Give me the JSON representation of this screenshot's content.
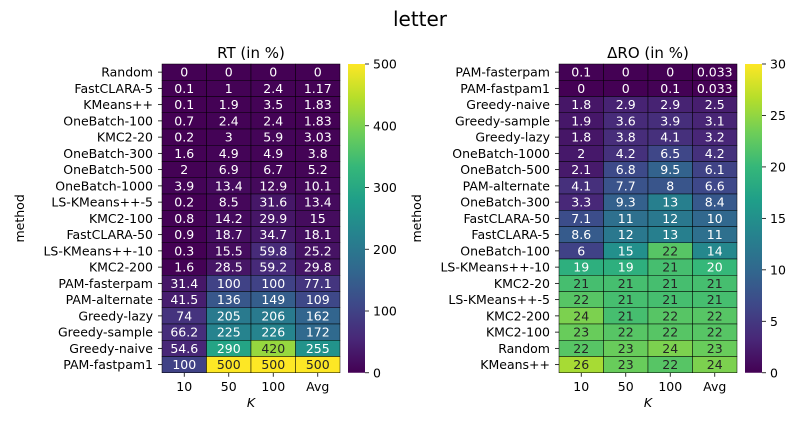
{
  "figure_title": "letter",
  "colormap": [
    "#440154",
    "#482878",
    "#3e4989",
    "#31688e",
    "#26828e",
    "#1f9e89",
    "#35b779",
    "#6ece58",
    "#b5de2b",
    "#fde725"
  ],
  "chart_data": [
    {
      "type": "heatmap",
      "title": "RT (in %)",
      "xlabel": "K",
      "ylabel": "method",
      "columns": [
        "10",
        "50",
        "100",
        "Avg"
      ],
      "vmin": 0,
      "vmax": 500,
      "colorbar_ticks": [
        0,
        100,
        200,
        300,
        400,
        500
      ],
      "rows": [
        {
          "label": "Random",
          "values": [
            "0",
            "0",
            "0",
            "0"
          ]
        },
        {
          "label": "FastCLARA-5",
          "values": [
            "0.1",
            "1",
            "2.4",
            "1.17"
          ]
        },
        {
          "label": "KMeans++",
          "values": [
            "0.1",
            "1.9",
            "3.5",
            "1.83"
          ]
        },
        {
          "label": "OneBatch-100",
          "values": [
            "0.7",
            "2.4",
            "2.4",
            "1.83"
          ]
        },
        {
          "label": "KMC2-20",
          "values": [
            "0.2",
            "3",
            "5.9",
            "3.03"
          ]
        },
        {
          "label": "OneBatch-300",
          "values": [
            "1.6",
            "4.9",
            "4.9",
            "3.8"
          ]
        },
        {
          "label": "OneBatch-500",
          "values": [
            "2",
            "6.9",
            "6.7",
            "5.2"
          ]
        },
        {
          "label": "OneBatch-1000",
          "values": [
            "3.9",
            "13.4",
            "12.9",
            "10.1"
          ]
        },
        {
          "label": "LS-KMeans++-5",
          "values": [
            "0.2",
            "8.5",
            "31.6",
            "13.4"
          ]
        },
        {
          "label": "KMC2-100",
          "values": [
            "0.8",
            "14.2",
            "29.9",
            "15"
          ]
        },
        {
          "label": "FastCLARA-50",
          "values": [
            "0.9",
            "18.7",
            "34.7",
            "18.1"
          ]
        },
        {
          "label": "LS-KMeans++-10",
          "values": [
            "0.3",
            "15.5",
            "59.8",
            "25.2"
          ]
        },
        {
          "label": "KMC2-200",
          "values": [
            "1.6",
            "28.5",
            "59.2",
            "29.8"
          ]
        },
        {
          "label": "PAM-fasterpam",
          "values": [
            "31.4",
            "100",
            "100",
            "77.1"
          ]
        },
        {
          "label": "PAM-alternate",
          "values": [
            "41.5",
            "136",
            "149",
            "109"
          ]
        },
        {
          "label": "Greedy-lazy",
          "values": [
            "74",
            "205",
            "206",
            "162"
          ]
        },
        {
          "label": "Greedy-sample",
          "values": [
            "66.2",
            "225",
            "226",
            "172"
          ]
        },
        {
          "label": "Greedy-naive",
          "values": [
            "54.6",
            "290",
            "420",
            "255"
          ]
        },
        {
          "label": "PAM-fastpam1",
          "values": [
            "100",
            "500",
            "500",
            "500"
          ]
        }
      ]
    },
    {
      "type": "heatmap",
      "title": "ΔRO (in %)",
      "xlabel": "K",
      "ylabel": "method",
      "columns": [
        "10",
        "50",
        "100",
        "Avg"
      ],
      "vmin": 0,
      "vmax": 30,
      "colorbar_ticks": [
        0,
        5,
        10,
        15,
        20,
        25,
        30
      ],
      "rows": [
        {
          "label": "PAM-fasterpam",
          "values": [
            "0.1",
            "0",
            "0",
            "0.033"
          ]
        },
        {
          "label": "PAM-fastpam1",
          "values": [
            "0",
            "0",
            "0.1",
            "0.033"
          ]
        },
        {
          "label": "Greedy-naive",
          "values": [
            "1.8",
            "2.9",
            "2.9",
            "2.5"
          ]
        },
        {
          "label": "Greedy-sample",
          "values": [
            "1.9",
            "3.6",
            "3.9",
            "3.1"
          ]
        },
        {
          "label": "Greedy-lazy",
          "values": [
            "1.8",
            "3.8",
            "4.1",
            "3.2"
          ]
        },
        {
          "label": "OneBatch-1000",
          "values": [
            "2",
            "4.2",
            "6.5",
            "4.2"
          ]
        },
        {
          "label": "OneBatch-500",
          "values": [
            "2.1",
            "6.8",
            "9.5",
            "6.1"
          ]
        },
        {
          "label": "PAM-alternate",
          "values": [
            "4.1",
            "7.7",
            "8",
            "6.6"
          ]
        },
        {
          "label": "OneBatch-300",
          "values": [
            "3.3",
            "9.3",
            "13",
            "8.4"
          ]
        },
        {
          "label": "FastCLARA-50",
          "values": [
            "7.1",
            "11",
            "12",
            "10"
          ]
        },
        {
          "label": "FastCLARA-5",
          "values": [
            "8.6",
            "12",
            "13",
            "11"
          ]
        },
        {
          "label": "OneBatch-100",
          "values": [
            "6",
            "15",
            "22",
            "14"
          ]
        },
        {
          "label": "LS-KMeans++-10",
          "values": [
            "19",
            "19",
            "21",
            "20"
          ]
        },
        {
          "label": "KMC2-20",
          "values": [
            "21",
            "21",
            "21",
            "21"
          ]
        },
        {
          "label": "LS-KMeans++-5",
          "values": [
            "22",
            "21",
            "21",
            "21"
          ]
        },
        {
          "label": "KMC2-200",
          "values": [
            "24",
            "21",
            "22",
            "22"
          ]
        },
        {
          "label": "KMC2-100",
          "values": [
            "23",
            "22",
            "22",
            "22"
          ]
        },
        {
          "label": "Random",
          "values": [
            "22",
            "23",
            "24",
            "23"
          ]
        },
        {
          "label": "KMeans++",
          "values": [
            "26",
            "23",
            "22",
            "24"
          ]
        }
      ]
    }
  ]
}
